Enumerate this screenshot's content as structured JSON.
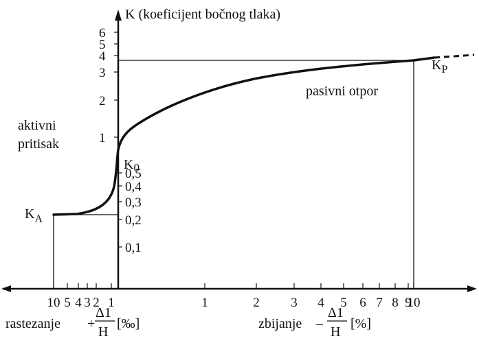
{
  "chart_data": {
    "type": "line",
    "title": "K (koeficijent bočnog tlaka)",
    "ylabel": "K (koeficijent bočnog tlaka)",
    "y_scale": "log",
    "y_ticks_upper": [
      "1",
      "2",
      "3",
      "4",
      "5",
      "6"
    ],
    "y_ticks_lower": [
      "0,5",
      "0,4",
      "0,3",
      "0,2",
      "0,1"
    ],
    "x_ticks_left": [
      "10",
      "5",
      "4",
      "3",
      "2",
      "1"
    ],
    "x_ticks_right": [
      "1",
      "2",
      "3",
      "4",
      "5",
      "6",
      "7",
      "8",
      "9",
      "10"
    ],
    "x_label_left": {
      "text": "rastezanje",
      "sign": "+",
      "numerator": "Δ1",
      "denominator": "H",
      "unit": "[‰]"
    },
    "x_label_right": {
      "text": "zbijanje",
      "sign": "–",
      "numerator": "Δ1",
      "denominator": "H",
      "unit": "[%]"
    },
    "annotations": {
      "active": [
        "aktivni",
        "pritisak"
      ],
      "passive": "pasivni otpor",
      "k0": "K0",
      "ka": "KA",
      "kp": "KP"
    },
    "series": [
      {
        "x": [
          -10,
          -8,
          -6,
          -5,
          -4,
          -3,
          -2,
          -1.5,
          -1,
          -0.5,
          0,
          0.1,
          0.2,
          0.4,
          0.7,
          1,
          1.5,
          2,
          3,
          4,
          5,
          6,
          7,
          8,
          9,
          10
        ],
        "y": [
          0.22,
          0.22,
          0.225,
          0.23,
          0.24,
          0.255,
          0.28,
          0.3,
          0.33,
          0.38,
          0.5,
          0.8,
          1.0,
          1.3,
          1.6,
          1.9,
          2.15,
          2.35,
          2.6,
          2.8,
          3.0,
          3.15,
          3.3,
          3.45,
          3.55,
          3.65
        ]
      }
    ],
    "reference_values": {
      "K0": 0.5,
      "KA": 0.22,
      "KP": 3.7
    },
    "grid": false
  }
}
